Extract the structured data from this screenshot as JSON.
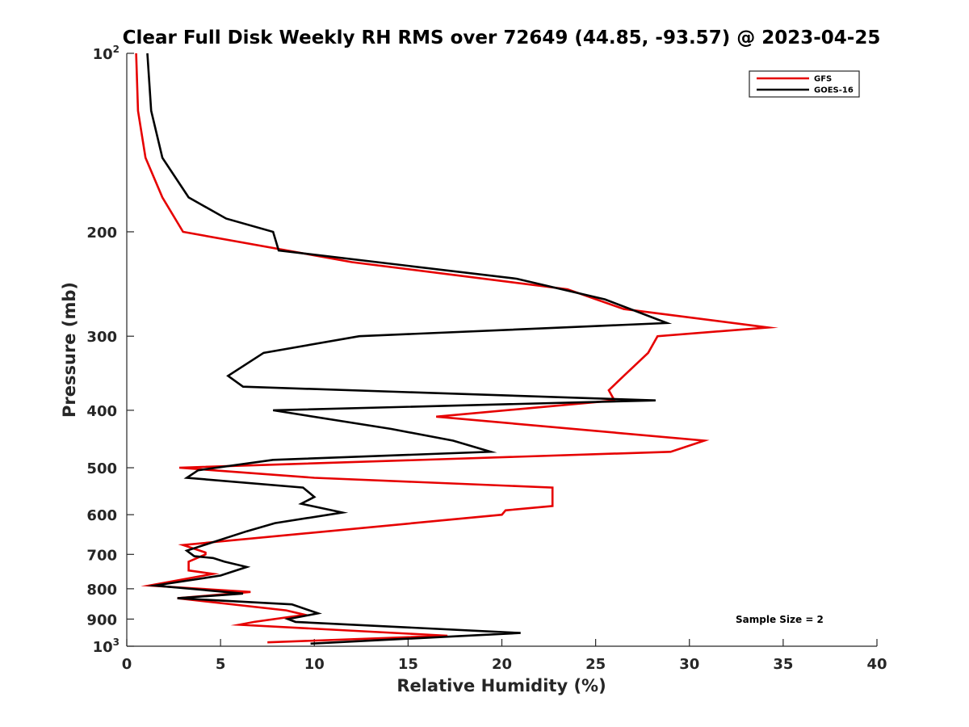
{
  "chart_data": {
    "type": "line",
    "title": "Clear Full Disk Weekly RH RMS over 72649 (44.85, -93.57) @ 2023-04-25",
    "xlabel": "Relative Humidity (%)",
    "ylabel": "Pressure (mb)",
    "xlim": [
      0,
      40
    ],
    "ylim": [
      100,
      1000
    ],
    "y_scale": "log",
    "y_reversed": true,
    "grid": false,
    "legend_position": "top-right",
    "x_ticks": [
      "0",
      "5",
      "10",
      "15",
      "20",
      "25",
      "30",
      "35",
      "40"
    ],
    "y_ticks": [
      {
        "value": 100,
        "label": "",
        "base": "10",
        "exp": "2"
      },
      {
        "value": 200,
        "label": "200"
      },
      {
        "value": 300,
        "label": "300"
      },
      {
        "value": 400,
        "label": "400"
      },
      {
        "value": 500,
        "label": "500"
      },
      {
        "value": 600,
        "label": "600"
      },
      {
        "value": 700,
        "label": "700"
      },
      {
        "value": 800,
        "label": "800"
      },
      {
        "value": 900,
        "label": "900"
      },
      {
        "value": 1000,
        "label": "",
        "base": "10",
        "exp": "3"
      }
    ],
    "series": [
      {
        "name": "GFS",
        "color": "#e60000",
        "points": [
          [
            0.5,
            100
          ],
          [
            0.6,
            125
          ],
          [
            1.0,
            150
          ],
          [
            1.9,
            175
          ],
          [
            3.0,
            200
          ],
          [
            12.0,
            225
          ],
          [
            23.5,
            250
          ],
          [
            26.5,
            270
          ],
          [
            34.2,
            290
          ],
          [
            28.3,
            300
          ],
          [
            27.8,
            320
          ],
          [
            26.5,
            350
          ],
          [
            25.7,
            370
          ],
          [
            26.0,
            385
          ],
          [
            16.5,
            410
          ],
          [
            30.8,
            450
          ],
          [
            29.0,
            470
          ],
          [
            2.8,
            500
          ],
          [
            10.0,
            520
          ],
          [
            22.7,
            540
          ],
          [
            22.7,
            580
          ],
          [
            20.2,
            590
          ],
          [
            20.0,
            600
          ],
          [
            3.0,
            675
          ],
          [
            4.2,
            695
          ],
          [
            4.2,
            700
          ],
          [
            3.3,
            720
          ],
          [
            3.3,
            745
          ],
          [
            4.6,
            755
          ],
          [
            1.2,
            790
          ],
          [
            6.6,
            810
          ],
          [
            2.7,
            830
          ],
          [
            8.5,
            870
          ],
          [
            9.5,
            885
          ],
          [
            6.8,
            910
          ],
          [
            6.0,
            920
          ],
          [
            17.1,
            960
          ],
          [
            7.5,
            985
          ]
        ]
      },
      {
        "name": "GOES-16",
        "color": "#000000",
        "points": [
          [
            1.1,
            100
          ],
          [
            1.3,
            125
          ],
          [
            1.9,
            150
          ],
          [
            3.3,
            175
          ],
          [
            5.3,
            190
          ],
          [
            7.8,
            200
          ],
          [
            8.1,
            215
          ],
          [
            20.8,
            240
          ],
          [
            25.5,
            260
          ],
          [
            28.8,
            285
          ],
          [
            12.4,
            300
          ],
          [
            7.3,
            320
          ],
          [
            5.4,
            350
          ],
          [
            6.2,
            365
          ],
          [
            28.2,
            385
          ],
          [
            7.8,
            400
          ],
          [
            14.1,
            430
          ],
          [
            17.4,
            450
          ],
          [
            19.4,
            470
          ],
          [
            7.8,
            485
          ],
          [
            3.8,
            505
          ],
          [
            3.2,
            520
          ],
          [
            9.4,
            540
          ],
          [
            10.0,
            560
          ],
          [
            9.3,
            575
          ],
          [
            11.5,
            595
          ],
          [
            7.9,
            620
          ],
          [
            6.4,
            640
          ],
          [
            3.2,
            690
          ],
          [
            3.6,
            705
          ],
          [
            4.6,
            710
          ],
          [
            5.2,
            720
          ],
          [
            6.4,
            735
          ],
          [
            5.0,
            760
          ],
          [
            1.5,
            790
          ],
          [
            6.2,
            815
          ],
          [
            2.7,
            830
          ],
          [
            8.8,
            850
          ],
          [
            10.2,
            880
          ],
          [
            8.6,
            900
          ],
          [
            9.0,
            910
          ],
          [
            21.0,
            950
          ],
          [
            9.8,
            990
          ]
        ]
      }
    ],
    "annotation": "Sample Size = 2"
  }
}
